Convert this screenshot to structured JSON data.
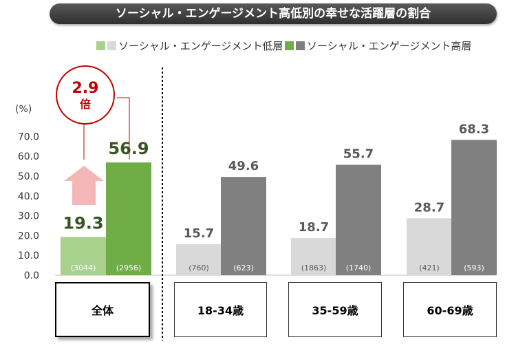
{
  "title": "ソーシャル・エンゲージメント高低別の幸せな活躍層の割合",
  "chart_data": {
    "type": "bar",
    "unit": "(%)",
    "yticks": [
      "70.0",
      "60.0",
      "50.0",
      "40.0",
      "30.0",
      "20.0",
      "10.0",
      "0.0"
    ],
    "ylim": [
      0,
      80
    ],
    "categories": [
      "全体",
      "18-34歳",
      "35-59歳",
      "60-69歳"
    ],
    "series": [
      {
        "name": "ソーシャル・エンゲージメント低層",
        "values": [
          19.3,
          15.7,
          18.7,
          28.7
        ],
        "labels": [
          "19.3",
          "15.7",
          "18.7",
          "28.7"
        ],
        "n": [
          "(3044)",
          "(760)",
          "(1863)",
          "(421)"
        ]
      },
      {
        "name": "ソーシャル・エンゲージメント高層",
        "values": [
          56.9,
          49.6,
          55.7,
          68.3
        ],
        "labels": [
          "56.9",
          "49.6",
          "55.7",
          "68.3"
        ],
        "n": [
          "(2956)",
          "(623)",
          "(1740)",
          "(593)"
        ]
      }
    ],
    "annotation": {
      "value": "2.9",
      "unit": "倍"
    },
    "colors": {
      "total_low": "#a9d18e",
      "total_high": "#70ad47",
      "age_low": "#d9d9d9",
      "age_high": "#808080",
      "arrow": "#f4b6b6",
      "annotation": "#c00000"
    }
  }
}
